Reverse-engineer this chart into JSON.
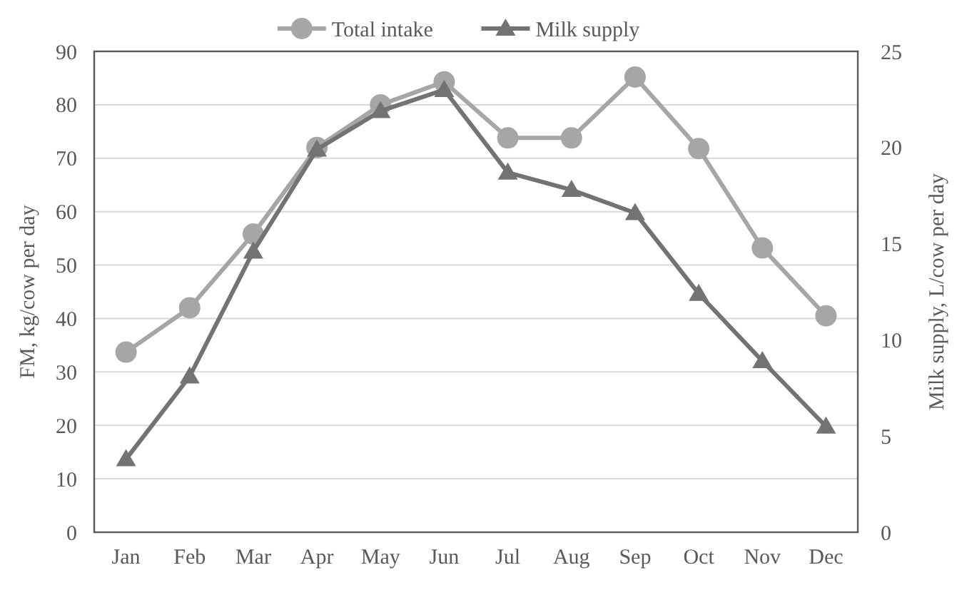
{
  "chart_data": {
    "type": "line",
    "ylabel": "FM, kg/cow per day",
    "y2label": "Milk supply, L/cow per day",
    "categories": [
      "Jan",
      "Feb",
      "Mar",
      "Apr",
      "May",
      "Jun",
      "Jul",
      "Aug",
      "Sep",
      "Oct",
      "Nov",
      "Dec"
    ],
    "series": [
      {
        "name": "Total intake",
        "color": "#a6a6a6",
        "marker": "circle",
        "values": [
          33.7,
          42,
          55.8,
          72,
          80,
          84.3,
          73.8,
          73.8,
          85.2,
          71.8,
          53.2,
          40.5
        ]
      },
      {
        "name": "Milk supply",
        "color": "#737373",
        "marker": "triangle",
        "axis": "y2",
        "values": [
          3.8,
          8.1,
          14.6,
          19.9,
          21.9,
          23.0,
          18.7,
          17.8,
          16.6,
          12.4,
          8.9,
          5.5
        ]
      }
    ],
    "ylim": [
      0,
      90
    ],
    "yticks": [
      0,
      10,
      20,
      30,
      40,
      50,
      60,
      70,
      80,
      90
    ],
    "y2lim": [
      0,
      25
    ],
    "y2ticks": [
      0,
      5,
      10,
      15,
      20,
      25
    ],
    "grid": "y",
    "legend": "top"
  }
}
